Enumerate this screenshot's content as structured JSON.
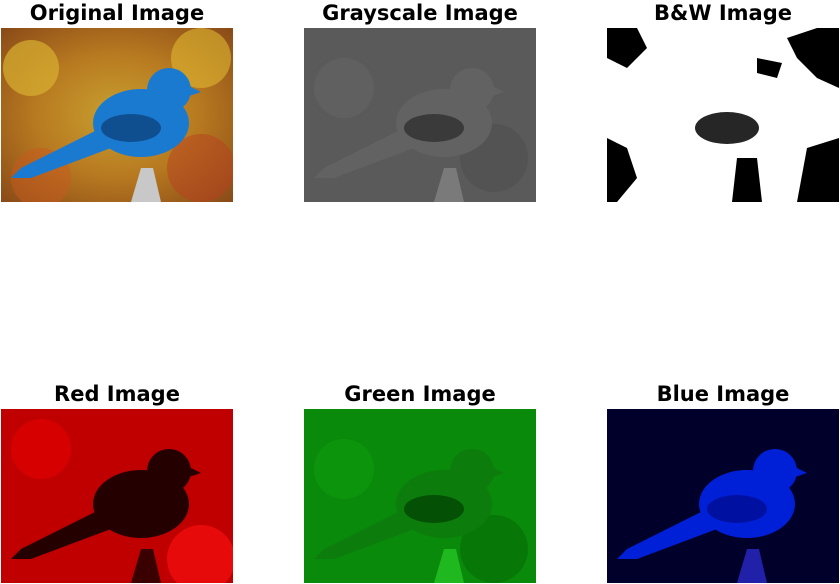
{
  "panels": [
    {
      "title": "Original Image"
    },
    {
      "title": "Grayscale Image"
    },
    {
      "title": "B&W Image"
    },
    {
      "title": "Red Image"
    },
    {
      "title": "Green Image"
    },
    {
      "title": "Blue Image"
    }
  ]
}
